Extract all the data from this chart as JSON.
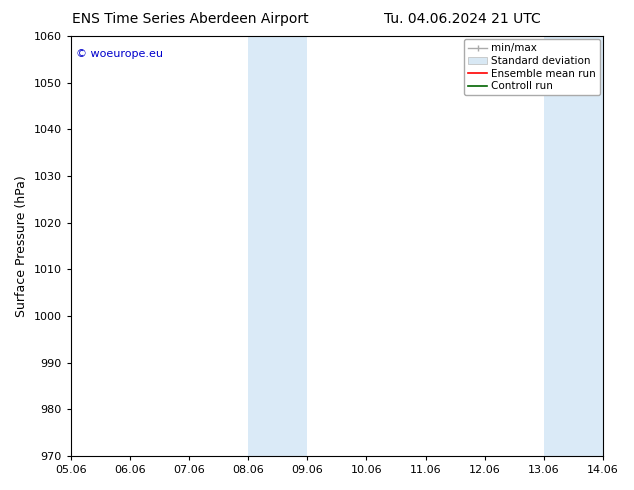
{
  "title_left": "ENS Time Series Aberdeen Airport",
  "title_right": "Tu. 04.06.2024 21 UTC",
  "ylabel": "Surface Pressure (hPa)",
  "xlabel_ticks": [
    "05.06",
    "06.06",
    "07.06",
    "08.06",
    "09.06",
    "10.06",
    "11.06",
    "12.06",
    "13.06",
    "14.06"
  ],
  "ylim": [
    970,
    1060
  ],
  "yticks": [
    970,
    980,
    990,
    1000,
    1010,
    1020,
    1030,
    1040,
    1050,
    1060
  ],
  "shaded_regions": [
    {
      "xstart": 3,
      "xend": 4,
      "color": "#daeaf7"
    },
    {
      "xstart": 8,
      "xend": 9,
      "color": "#daeaf7"
    }
  ],
  "watermark": "© woeurope.eu",
  "watermark_color": "#0000cc",
  "background_color": "#ffffff",
  "spine_color": "#000000",
  "tick_fontsize": 8,
  "label_fontsize": 9,
  "title_fontsize": 10
}
